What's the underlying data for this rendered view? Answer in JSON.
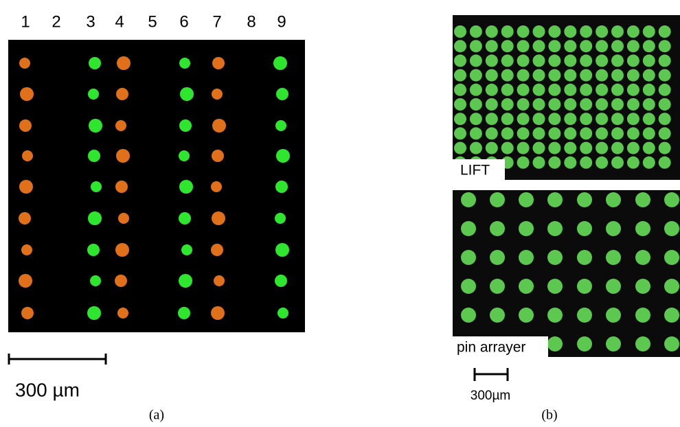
{
  "panel_a": {
    "column_labels": [
      "1",
      "2",
      "3",
      "4",
      "5",
      "6",
      "7",
      "8",
      "9"
    ],
    "scale_label": "300 µm",
    "caption": "(a)"
  },
  "panel_b": {
    "top_label": "LIFT",
    "bottom_label": "pin arrayer",
    "scale_label": "300µm",
    "caption": "(b)"
  }
}
